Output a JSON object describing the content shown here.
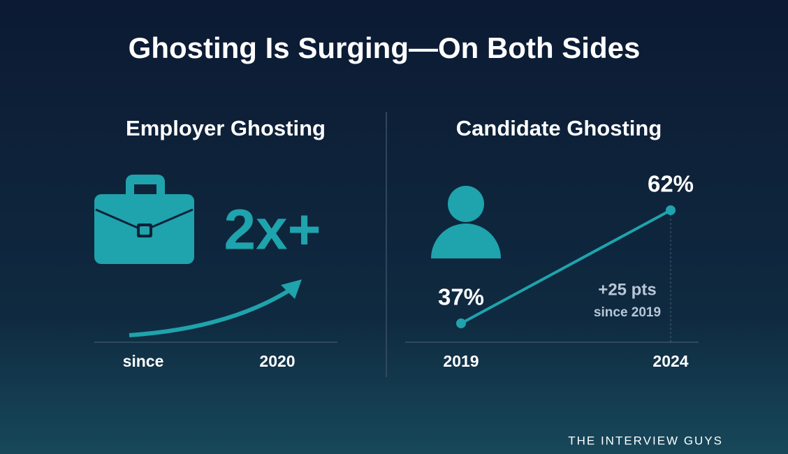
{
  "title": "Ghosting Is Surging—On Both Sides",
  "employer": {
    "heading": "Employer Ghosting",
    "stat": "2x+",
    "label_left": "since",
    "label_right": "2020"
  },
  "chart_data": {
    "type": "line",
    "title": "Candidate Ghosting",
    "x": [
      2019,
      2024
    ],
    "series": [
      {
        "color": "#1fa3ac",
        "values": [
          37,
          62
        ],
        "value_labels": [
          "37%",
          "62%"
        ]
      }
    ],
    "annotations": [
      "+25 pts",
      "since 2019"
    ]
  },
  "footer": "THE INTERVIEW GUYS"
}
